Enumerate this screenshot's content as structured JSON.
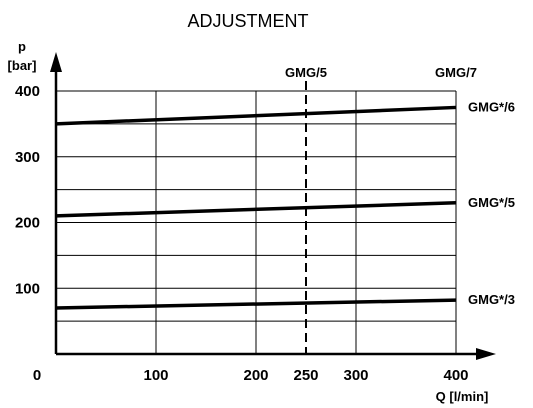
{
  "chart_data": {
    "type": "line",
    "title": "ADJUSTMENT",
    "ylabel_symbol": "p",
    "ylabel_unit": "[bar]",
    "xlabel": "Q [l/min]",
    "xlim": [
      0,
      400
    ],
    "ylim": [
      0,
      400
    ],
    "x_ticks": [
      {
        "value": 0,
        "label": "0"
      },
      {
        "value": 100,
        "label": "100"
      },
      {
        "value": 200,
        "label": "200"
      },
      {
        "value": 250,
        "label": "250"
      },
      {
        "value": 300,
        "label": "300"
      },
      {
        "value": 400,
        "label": "400"
      }
    ],
    "y_ticks": [
      {
        "value": 100,
        "label": "100"
      },
      {
        "value": 200,
        "label": "200"
      },
      {
        "value": 300,
        "label": "300"
      },
      {
        "value": 400,
        "label": "400"
      }
    ],
    "grid_x": [
      100,
      200,
      300,
      400
    ],
    "grid_y": [
      50,
      100,
      150,
      200,
      250,
      300,
      350,
      400
    ],
    "series": [
      {
        "name": "GMG*/6",
        "x": [
          0,
          400
        ],
        "y": [
          350,
          375
        ]
      },
      {
        "name": "GMG*/5",
        "x": [
          0,
          400
        ],
        "y": [
          210,
          230
        ]
      },
      {
        "name": "GMG*/3",
        "x": [
          0,
          400
        ],
        "y": [
          70,
          82
        ]
      }
    ],
    "vertical_markers": [
      {
        "x": 250,
        "label": "GMG/5",
        "style": "dashed"
      }
    ],
    "annotations": [
      {
        "label": "GMG/7",
        "x": 400
      }
    ]
  }
}
